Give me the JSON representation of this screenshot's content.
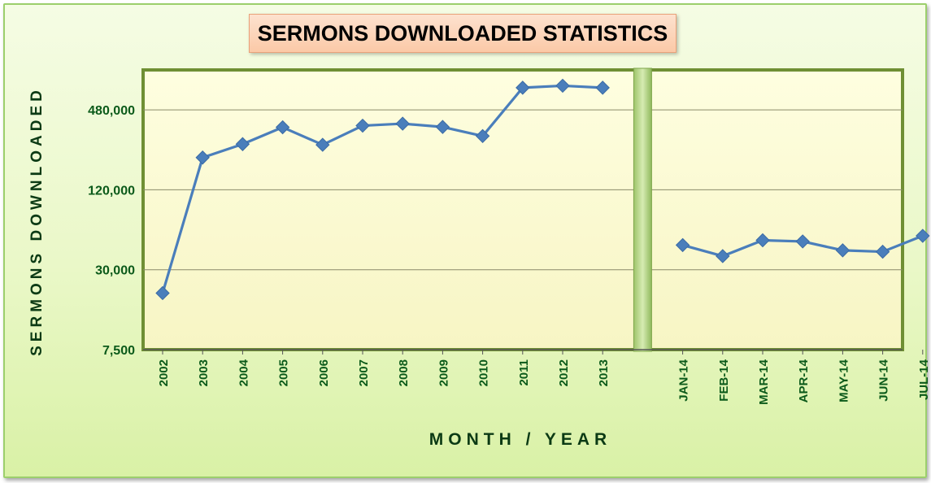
{
  "chart_data": {
    "type": "line",
    "title": "SERMONS DOWNLOADED STATISTICS",
    "xlabel": "MONTH / YEAR",
    "ylabel": "SERMONS DOWNLOADED",
    "y_scale": "log",
    "ylim": [
      7500,
      960000
    ],
    "yticks": [
      7500,
      30000,
      120000,
      480000
    ],
    "ytick_labels": [
      "7,500",
      "30,000",
      "120,000",
      "480,000"
    ],
    "grid": true,
    "legend": "none",
    "line_color": "#4a7ebb",
    "marker": "diamond",
    "segments": [
      {
        "categories": [
          "2002",
          "2003",
          "2004",
          "2005",
          "2006",
          "2007",
          "2008",
          "2009",
          "2010",
          "2011",
          "2012",
          "2013"
        ],
        "values": [
          20000,
          210000,
          265000,
          355000,
          262000,
          365000,
          378000,
          357000,
          305000,
          705000,
          730000,
          705000
        ]
      },
      {
        "categories": [
          "JAN-14",
          "FEB-14",
          "MAR-14",
          "APR-14",
          "MAY-14",
          "JUN-14",
          "JUL-14"
        ],
        "values": [
          46000,
          38000,
          50000,
          49000,
          42000,
          41000,
          54000
        ]
      }
    ]
  }
}
